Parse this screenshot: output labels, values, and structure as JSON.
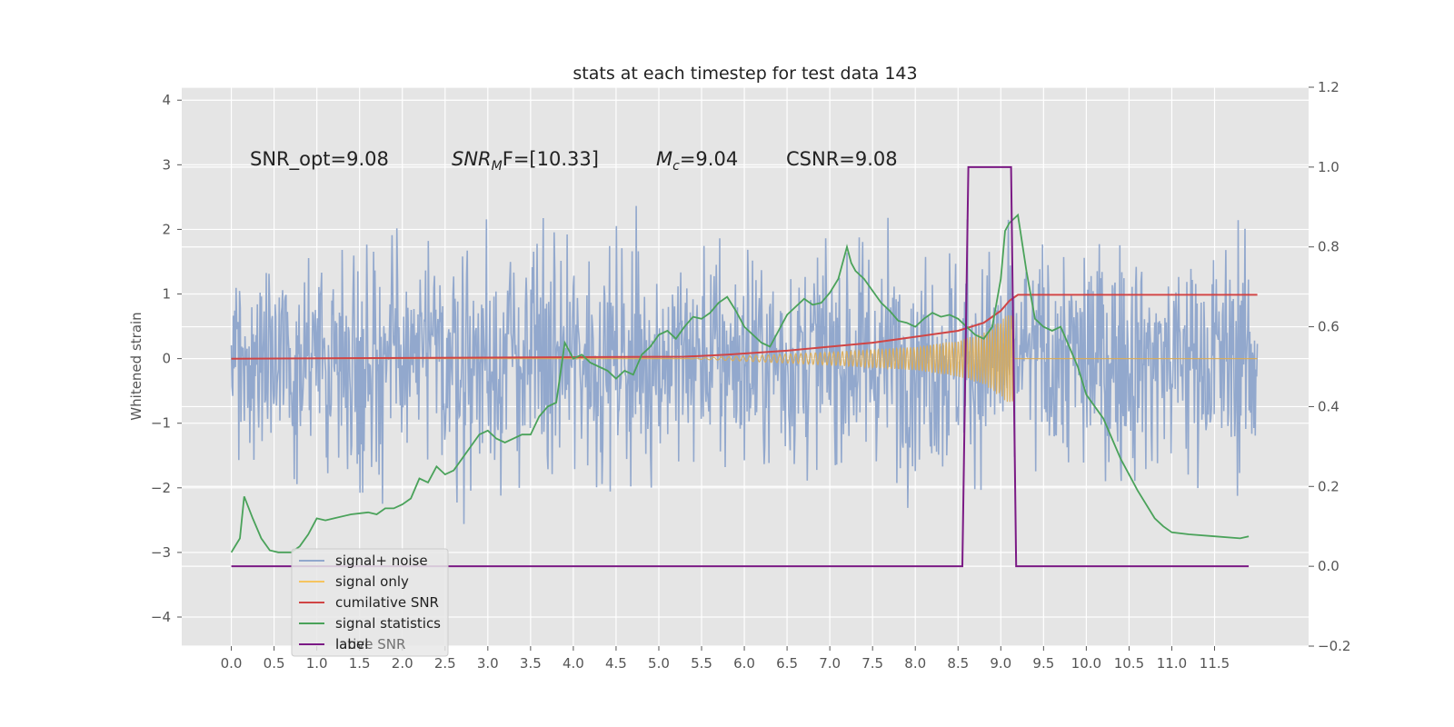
{
  "chart_data": {
    "type": "line",
    "title": "stats at each timestep for test data 143",
    "ylabel": "Whitened strain",
    "xlabel": "",
    "xlim": [
      -0.58,
      12.6
    ],
    "ylim": [
      -4.45,
      4.2
    ],
    "y2lim": [
      -0.2,
      1.2
    ],
    "grid": true,
    "x_ticks": [
      "0.0",
      "0.5",
      "1.0",
      "1.5",
      "2.0",
      "2.5",
      "3.0",
      "3.5",
      "4.0",
      "4.5",
      "5.0",
      "5.5",
      "6.0",
      "6.5",
      "7.0",
      "7.5",
      "8.0",
      "8.5",
      "9.0",
      "9.5",
      "10.0",
      "10.5",
      "11.0",
      "11.5"
    ],
    "y_ticks": [
      "4",
      "3",
      "2",
      "1",
      "0",
      "−1",
      "−2",
      "−3",
      "−4"
    ],
    "y2_ticks": [
      "1.2",
      "1.0",
      "0.8",
      "0.6",
      "0.4",
      "0.2",
      "0.0",
      "−0.2"
    ],
    "annotations": [
      {
        "pre": "SNR_opt=9.08",
        "italic": "",
        "sub": "",
        "post": ""
      },
      {
        "pre": "",
        "italic": "SNR",
        "sub": "M",
        "post": "F=[10.33]"
      },
      {
        "pre": "",
        "italic": "M",
        "sub": "c",
        "post": "=9.04"
      },
      {
        "pre": "CSNR=9.08",
        "italic": "",
        "sub": "",
        "post": ""
      }
    ],
    "legend_position": "lower-left",
    "legend": [
      {
        "label": "signal+ noise",
        "color": "#92a8cd"
      },
      {
        "label": "signal only",
        "color": "#f5c460"
      },
      {
        "label": "cumilative SNR",
        "color": "#d04545"
      },
      {
        "label": "signal statistics",
        "color": "#4aa25a"
      },
      {
        "label": "label",
        "color": "#7b1a85"
      }
    ],
    "legend_ghost_text": "lative SNR",
    "series": [
      {
        "name": "signal+ noise",
        "axis": "left",
        "color": "#92a8cd",
        "x_range": [
          0.0,
          12.0
        ],
        "amplitude": 1.2
      },
      {
        "name": "signal only",
        "axis": "left",
        "color": "#dcab54",
        "envelope": {
          "x": [
            5.3,
            6.0,
            7.0,
            8.0,
            8.5,
            8.8,
            9.0,
            9.15
          ],
          "amp": [
            0.0,
            0.04,
            0.1,
            0.18,
            0.28,
            0.4,
            0.6,
            0.75
          ]
        },
        "x_end": 12.0
      },
      {
        "name": "cumilative SNR",
        "axis": "right",
        "color": "#d04545",
        "x": [
          0.0,
          5.3,
          5.8,
          6.5,
          7.0,
          7.5,
          8.0,
          8.5,
          8.8,
          9.0,
          9.1,
          9.2,
          12.0
        ],
        "y": [
          0.52,
          0.525,
          0.53,
          0.54,
          0.55,
          0.56,
          0.575,
          0.59,
          0.61,
          0.64,
          0.665,
          0.68,
          0.68
        ]
      },
      {
        "name": "signal statistics",
        "axis": "right",
        "color": "#4aa25a",
        "x": [
          0.0,
          0.1,
          0.15,
          0.25,
          0.35,
          0.45,
          0.55,
          0.7,
          0.8,
          0.9,
          1.0,
          1.1,
          1.2,
          1.4,
          1.6,
          1.7,
          1.8,
          1.9,
          2.0,
          2.1,
          2.2,
          2.3,
          2.4,
          2.5,
          2.6,
          2.7,
          2.8,
          2.9,
          3.0,
          3.1,
          3.2,
          3.3,
          3.4,
          3.5,
          3.6,
          3.7,
          3.8,
          3.9,
          4.0,
          4.1,
          4.2,
          4.3,
          4.4,
          4.5,
          4.6,
          4.7,
          4.8,
          4.9,
          5.0,
          5.1,
          5.2,
          5.3,
          5.4,
          5.5,
          5.6,
          5.7,
          5.8,
          5.9,
          6.0,
          6.1,
          6.2,
          6.3,
          6.4,
          6.5,
          6.6,
          6.7,
          6.8,
          6.9,
          7.0,
          7.1,
          7.2,
          7.25,
          7.3,
          7.4,
          7.5,
          7.6,
          7.7,
          7.8,
          7.9,
          8.0,
          8.1,
          8.2,
          8.3,
          8.4,
          8.5,
          8.6,
          8.7,
          8.8,
          8.9,
          9.0,
          9.05,
          9.1,
          9.2,
          9.3,
          9.4,
          9.5,
          9.6,
          9.7,
          9.8,
          9.9,
          10.0,
          10.2,
          10.4,
          10.6,
          10.8,
          10.9,
          11.0,
          11.2,
          11.5,
          11.8,
          11.9
        ],
        "y": [
          0.035,
          0.07,
          0.175,
          0.12,
          0.07,
          0.04,
          0.035,
          0.035,
          0.05,
          0.08,
          0.12,
          0.115,
          0.12,
          0.13,
          0.135,
          0.13,
          0.145,
          0.145,
          0.155,
          0.17,
          0.22,
          0.21,
          0.25,
          0.23,
          0.24,
          0.27,
          0.3,
          0.33,
          0.34,
          0.32,
          0.31,
          0.32,
          0.33,
          0.33,
          0.375,
          0.4,
          0.41,
          0.56,
          0.52,
          0.53,
          0.51,
          0.5,
          0.49,
          0.47,
          0.49,
          0.48,
          0.53,
          0.55,
          0.58,
          0.59,
          0.57,
          0.6,
          0.625,
          0.62,
          0.635,
          0.66,
          0.675,
          0.64,
          0.6,
          0.58,
          0.56,
          0.55,
          0.59,
          0.63,
          0.65,
          0.67,
          0.655,
          0.66,
          0.685,
          0.72,
          0.8,
          0.76,
          0.74,
          0.72,
          0.69,
          0.66,
          0.64,
          0.615,
          0.61,
          0.6,
          0.62,
          0.635,
          0.625,
          0.63,
          0.62,
          0.6,
          0.58,
          0.57,
          0.6,
          0.72,
          0.84,
          0.86,
          0.88,
          0.74,
          0.62,
          0.6,
          0.59,
          0.6,
          0.55,
          0.5,
          0.43,
          0.37,
          0.27,
          0.19,
          0.12,
          0.1,
          0.085,
          0.08,
          0.075,
          0.07,
          0.075
        ]
      },
      {
        "name": "label",
        "axis": "right",
        "color": "#7b1a85",
        "x": [
          0.0,
          8.55,
          8.62,
          9.12,
          9.18,
          11.9
        ],
        "y": [
          0.0,
          0.0,
          1.0,
          1.0,
          0.0,
          0.0
        ]
      }
    ]
  }
}
